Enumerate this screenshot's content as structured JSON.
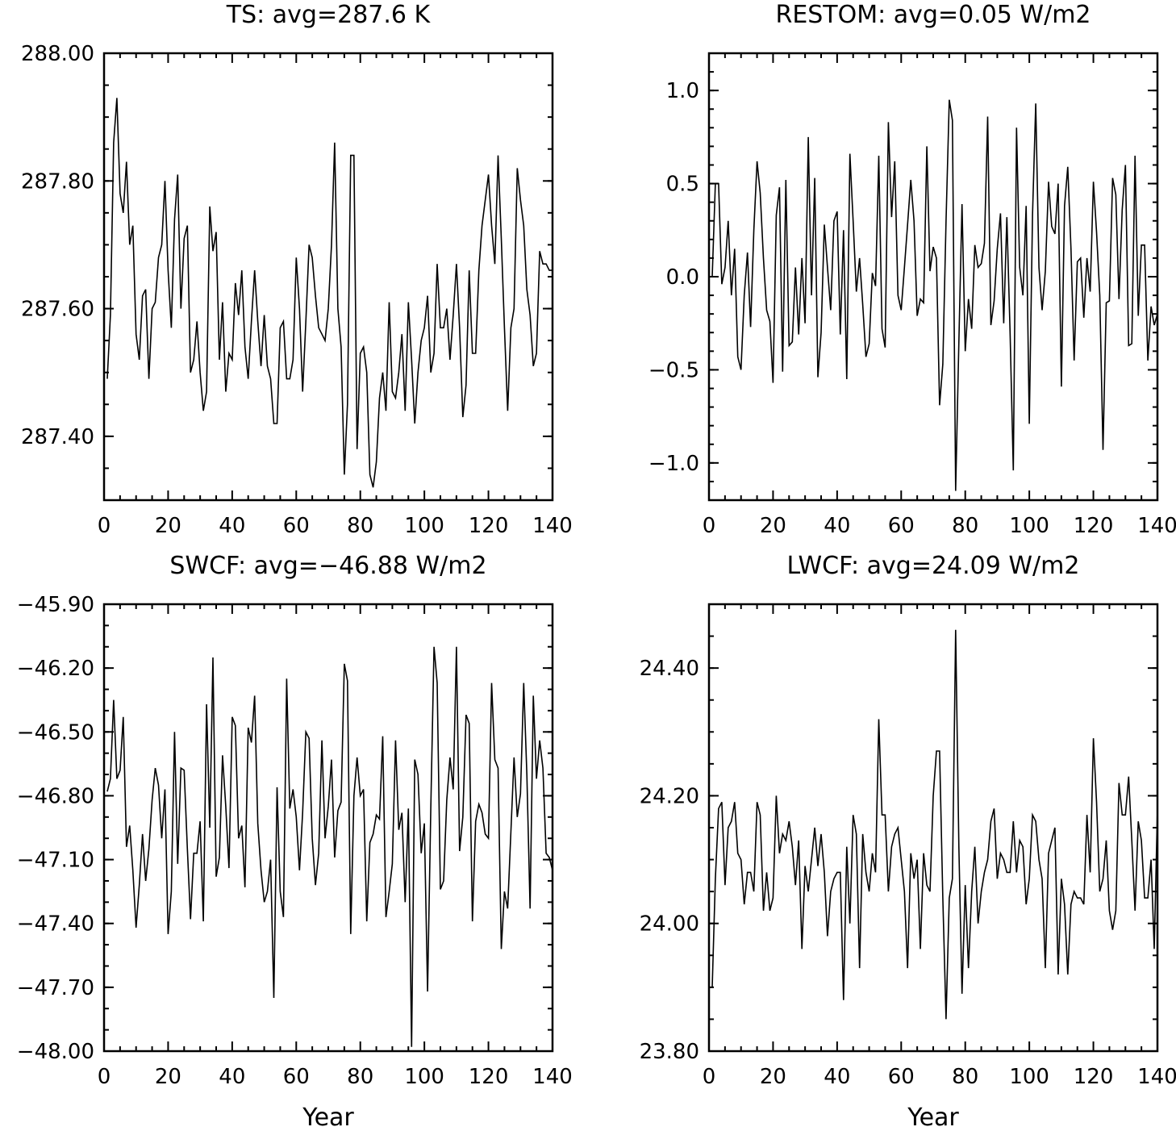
{
  "chart_data": [
    {
      "type": "line",
      "title": "TS: avg=287.6 K",
      "xlabel": "",
      "xlim": [
        0,
        140
      ],
      "ylim": [
        287.3,
        288.0
      ],
      "xticks": [
        0,
        20,
        40,
        60,
        80,
        100,
        120,
        140
      ],
      "xtick_labels": [
        "0",
        "20",
        "40",
        "60",
        "80",
        "100",
        "120",
        "140"
      ],
      "yticks": [
        287.4,
        287.6,
        287.8,
        288.0
      ],
      "ytick_labels": [
        "287.40",
        "287.60",
        "287.80",
        "288.00"
      ],
      "y_minor_step": 0.05,
      "grid": false,
      "x": [
        1,
        2,
        3,
        4,
        5,
        6,
        7,
        8,
        9,
        10,
        11,
        12,
        13,
        14,
        15,
        16,
        17,
        18,
        19,
        20,
        21,
        22,
        23,
        24,
        25,
        26,
        27,
        28,
        29,
        30,
        31,
        32,
        33,
        34,
        35,
        36,
        37,
        38,
        39,
        40,
        41,
        42,
        43,
        44,
        45,
        46,
        47,
        48,
        49,
        50,
        51,
        52,
        53,
        54,
        55,
        56,
        57,
        58,
        59,
        60,
        61,
        62,
        63,
        64,
        65,
        66,
        67,
        68,
        69,
        70,
        71,
        72,
        73,
        74,
        75,
        76,
        77,
        78,
        79,
        80,
        81,
        82,
        83,
        84,
        85,
        86,
        87,
        88,
        89,
        90,
        91,
        92,
        93,
        94,
        95,
        96,
        97,
        98,
        99,
        100,
        101,
        102,
        103,
        104,
        105,
        106,
        107,
        108,
        109,
        110,
        111,
        112,
        113,
        114,
        115,
        116,
        117,
        118,
        119,
        120,
        121,
        122,
        123,
        124,
        125,
        126,
        127,
        128,
        129,
        130,
        131,
        132,
        133,
        134,
        135,
        136,
        137,
        138,
        139,
        140
      ],
      "values": [
        287.49,
        287.59,
        287.86,
        287.93,
        287.78,
        287.75,
        287.83,
        287.7,
        287.73,
        287.56,
        287.52,
        287.62,
        287.63,
        287.49,
        287.6,
        287.61,
        287.68,
        287.7,
        287.8,
        287.66,
        287.57,
        287.74,
        287.81,
        287.6,
        287.71,
        287.73,
        287.5,
        287.52,
        287.58,
        287.5,
        287.44,
        287.47,
        287.76,
        287.69,
        287.72,
        287.52,
        287.61,
        287.47,
        287.53,
        287.52,
        287.64,
        287.59,
        287.66,
        287.54,
        287.49,
        287.58,
        287.66,
        287.58,
        287.51,
        287.59,
        287.51,
        287.49,
        287.42,
        287.42,
        287.57,
        287.58,
        287.49,
        287.49,
        287.52,
        287.68,
        287.6,
        287.47,
        287.58,
        287.7,
        287.68,
        287.62,
        287.57,
        287.56,
        287.55,
        287.6,
        287.7,
        287.86,
        287.6,
        287.54,
        287.34,
        287.45,
        287.84,
        287.84,
        287.38,
        287.53,
        287.54,
        287.5,
        287.34,
        287.32,
        287.36,
        287.46,
        287.5,
        287.44,
        287.61,
        287.47,
        287.46,
        287.5,
        287.56,
        287.44,
        287.61,
        287.52,
        287.42,
        287.5,
        287.55,
        287.57,
        287.62,
        287.5,
        287.53,
        287.67,
        287.57,
        287.57,
        287.6,
        287.52,
        287.59,
        287.67,
        287.57,
        287.43,
        287.48,
        287.66,
        287.53,
        287.53,
        287.66,
        287.73,
        287.77,
        287.81,
        287.73,
        287.67,
        287.84,
        287.71,
        287.57,
        287.44,
        287.57,
        287.6,
        287.82,
        287.77,
        287.73,
        287.63,
        287.59,
        287.51,
        287.53,
        287.69,
        287.67,
        287.67,
        287.66,
        287.66
      ]
    },
    {
      "type": "line",
      "title": "RESTOM: avg=0.05 W/m2",
      "xlabel": "",
      "xlim": [
        0,
        140
      ],
      "ylim": [
        -1.2,
        1.2
      ],
      "xticks": [
        0,
        20,
        40,
        60,
        80,
        100,
        120,
        140
      ],
      "xtick_labels": [
        "0",
        "20",
        "40",
        "60",
        "80",
        "100",
        "120",
        "140"
      ],
      "yticks": [
        -1.0,
        -0.5,
        0.0,
        0.5,
        1.0
      ],
      "ytick_labels": [
        "−1.0",
        "−0.5",
        "0.0",
        "0.5",
        "1.0"
      ],
      "y_minor_step": 0.1,
      "grid": false,
      "x": [
        1,
        2,
        3,
        4,
        5,
        6,
        7,
        8,
        9,
        10,
        11,
        12,
        13,
        14,
        15,
        16,
        17,
        18,
        19,
        20,
        21,
        22,
        23,
        24,
        25,
        26,
        27,
        28,
        29,
        30,
        31,
        32,
        33,
        34,
        35,
        36,
        37,
        38,
        39,
        40,
        41,
        42,
        43,
        44,
        45,
        46,
        47,
        48,
        49,
        50,
        51,
        52,
        53,
        54,
        55,
        56,
        57,
        58,
        59,
        60,
        61,
        62,
        63,
        64,
        65,
        66,
        67,
        68,
        69,
        70,
        71,
        72,
        73,
        74,
        75,
        76,
        77,
        78,
        79,
        80,
        81,
        82,
        83,
        84,
        85,
        86,
        87,
        88,
        89,
        90,
        91,
        92,
        93,
        94,
        95,
        96,
        97,
        98,
        99,
        100,
        101,
        102,
        103,
        104,
        105,
        106,
        107,
        108,
        109,
        110,
        111,
        112,
        113,
        114,
        115,
        116,
        117,
        118,
        119,
        120,
        121,
        122,
        123,
        124,
        125,
        126,
        127,
        128,
        129,
        130,
        131,
        132,
        133,
        134,
        135,
        136,
        137,
        138,
        139,
        140
      ],
      "values": [
        0.0,
        0.5,
        0.5,
        -0.04,
        0.05,
        0.3,
        -0.1,
        0.15,
        -0.43,
        -0.5,
        -0.1,
        0.13,
        -0.27,
        0.25,
        0.62,
        0.45,
        0.1,
        -0.18,
        -0.24,
        -0.57,
        0.33,
        0.48,
        -0.51,
        0.52,
        -0.37,
        -0.35,
        0.05,
        -0.31,
        0.1,
        -0.25,
        0.75,
        -0.1,
        0.53,
        -0.54,
        -0.3,
        0.28,
        0.05,
        -0.18,
        0.3,
        0.35,
        -0.31,
        0.25,
        -0.55,
        0.66,
        0.3,
        -0.08,
        0.1,
        -0.15,
        -0.43,
        -0.36,
        0.02,
        -0.05,
        0.65,
        -0.28,
        -0.38,
        0.83,
        0.32,
        0.62,
        -0.1,
        -0.18,
        0.05,
        0.28,
        0.52,
        0.3,
        -0.21,
        -0.12,
        -0.14,
        0.7,
        0.03,
        0.16,
        0.1,
        -0.69,
        -0.47,
        0.3,
        0.95,
        0.84,
        -1.15,
        -0.35,
        0.39,
        -0.4,
        -0.12,
        -0.28,
        0.17,
        0.05,
        0.07,
        0.18,
        0.86,
        -0.26,
        -0.13,
        0.15,
        0.34,
        -0.25,
        0.32,
        -0.3,
        -1.04,
        0.8,
        0.05,
        -0.1,
        0.38,
        -0.79,
        0.33,
        0.93,
        0.05,
        -0.18,
        0.03,
        0.51,
        0.27,
        0.23,
        0.5,
        -0.59,
        0.38,
        0.59,
        0.15,
        -0.45,
        0.08,
        0.1,
        -0.22,
        0.1,
        -0.08,
        0.51,
        0.24,
        -0.1,
        -0.93,
        -0.14,
        -0.13,
        0.53,
        0.44,
        -0.12,
        0.36,
        0.6,
        -0.37,
        -0.36,
        0.65,
        -0.21,
        0.17,
        0.17,
        -0.45,
        -0.16,
        -0.26,
        -0.2
      ]
    },
    {
      "type": "line",
      "title": "SWCF: avg=−46.88 W/m2",
      "xlabel": "Year",
      "xlim": [
        0,
        140
      ],
      "ylim": [
        -48.0,
        -45.9
      ],
      "xticks": [
        0,
        20,
        40,
        60,
        80,
        100,
        120,
        140
      ],
      "xtick_labels": [
        "0",
        "20",
        "40",
        "60",
        "80",
        "100",
        "120",
        "140"
      ],
      "yticks": [
        -48.0,
        -47.7,
        -47.4,
        -47.1,
        -46.8,
        -46.5,
        -46.2,
        -45.9
      ],
      "ytick_labels": [
        "−48.00",
        "−47.70",
        "−47.40",
        "−47.10",
        "−46.80",
        "−46.50",
        "−46.20",
        "−45.90"
      ],
      "y_minor_step": 0.1,
      "grid": false,
      "x": [
        1,
        2,
        3,
        4,
        5,
        6,
        7,
        8,
        9,
        10,
        11,
        12,
        13,
        14,
        15,
        16,
        17,
        18,
        19,
        20,
        21,
        22,
        23,
        24,
        25,
        26,
        27,
        28,
        29,
        30,
        31,
        32,
        33,
        34,
        35,
        36,
        37,
        38,
        39,
        40,
        41,
        42,
        43,
        44,
        45,
        46,
        47,
        48,
        49,
        50,
        51,
        52,
        53,
        54,
        55,
        56,
        57,
        58,
        59,
        60,
        61,
        62,
        63,
        64,
        65,
        66,
        67,
        68,
        69,
        70,
        71,
        72,
        73,
        74,
        75,
        76,
        77,
        78,
        79,
        80,
        81,
        82,
        83,
        84,
        85,
        86,
        87,
        88,
        89,
        90,
        91,
        92,
        93,
        94,
        95,
        96,
        97,
        98,
        99,
        100,
        101,
        102,
        103,
        104,
        105,
        106,
        107,
        108,
        109,
        110,
        111,
        112,
        113,
        114,
        115,
        116,
        117,
        118,
        119,
        120,
        121,
        122,
        123,
        124,
        125,
        126,
        127,
        128,
        129,
        130,
        131,
        132,
        133,
        134,
        135,
        136,
        137,
        138,
        139,
        140
      ],
      "values": [
        -46.78,
        -46.72,
        -46.35,
        -46.72,
        -46.68,
        -46.43,
        -47.04,
        -46.94,
        -47.15,
        -47.42,
        -47.22,
        -46.98,
        -47.2,
        -47.05,
        -46.82,
        -46.67,
        -46.75,
        -47.0,
        -46.77,
        -47.45,
        -47.25,
        -46.5,
        -47.12,
        -46.67,
        -46.68,
        -47.05,
        -47.38,
        -47.07,
        -47.07,
        -46.92,
        -47.39,
        -46.37,
        -46.95,
        -46.15,
        -47.18,
        -47.09,
        -46.61,
        -46.85,
        -47.14,
        -46.43,
        -46.47,
        -47.0,
        -46.94,
        -47.23,
        -46.48,
        -46.55,
        -46.33,
        -46.93,
        -47.15,
        -47.3,
        -47.25,
        -47.1,
        -47.75,
        -46.76,
        -47.25,
        -47.37,
        -46.25,
        -46.86,
        -46.77,
        -46.9,
        -47.15,
        -46.88,
        -46.5,
        -46.53,
        -47.0,
        -47.22,
        -47.07,
        -46.54,
        -47.0,
        -46.85,
        -46.63,
        -47.09,
        -46.87,
        -46.83,
        -46.18,
        -46.26,
        -47.45,
        -46.8,
        -46.62,
        -46.8,
        -46.77,
        -47.39,
        -47.02,
        -46.98,
        -46.89,
        -46.91,
        -46.52,
        -47.37,
        -47.25,
        -47.12,
        -46.54,
        -46.96,
        -46.88,
        -47.3,
        -46.86,
        -47.98,
        -46.63,
        -46.7,
        -47.07,
        -46.93,
        -47.72,
        -46.86,
        -46.1,
        -46.27,
        -47.24,
        -47.2,
        -46.82,
        -46.62,
        -46.77,
        -46.1,
        -47.06,
        -46.9,
        -46.42,
        -46.46,
        -47.39,
        -46.92,
        -46.84,
        -46.88,
        -46.98,
        -47.0,
        -46.27,
        -46.63,
        -46.67,
        -47.52,
        -47.25,
        -47.33,
        -46.97,
        -46.62,
        -46.9,
        -46.79,
        -46.27,
        -46.7,
        -47.33,
        -46.33,
        -46.72,
        -46.54,
        -46.67,
        -47.07,
        -47.09,
        -47.15
      ]
    },
    {
      "type": "line",
      "title": "LWCF: avg=24.09 W/m2",
      "xlabel": "Year",
      "xlim": [
        0,
        140
      ],
      "ylim": [
        23.8,
        24.5
      ],
      "xticks": [
        0,
        20,
        40,
        60,
        80,
        100,
        120,
        140
      ],
      "xtick_labels": [
        "0",
        "20",
        "40",
        "60",
        "80",
        "100",
        "120",
        "140"
      ],
      "yticks": [
        23.8,
        24.0,
        24.2,
        24.4
      ],
      "ytick_labels": [
        "23.80",
        "24.00",
        "24.20",
        "24.40"
      ],
      "y_minor_step": 0.05,
      "grid": false,
      "x": [
        1,
        2,
        3,
        4,
        5,
        6,
        7,
        8,
        9,
        10,
        11,
        12,
        13,
        14,
        15,
        16,
        17,
        18,
        19,
        20,
        21,
        22,
        23,
        24,
        25,
        26,
        27,
        28,
        29,
        30,
        31,
        32,
        33,
        34,
        35,
        36,
        37,
        38,
        39,
        40,
        41,
        42,
        43,
        44,
        45,
        46,
        47,
        48,
        49,
        50,
        51,
        52,
        53,
        54,
        55,
        56,
        57,
        58,
        59,
        60,
        61,
        62,
        63,
        64,
        65,
        66,
        67,
        68,
        69,
        70,
        71,
        72,
        73,
        74,
        75,
        76,
        77,
        78,
        79,
        80,
        81,
        82,
        83,
        84,
        85,
        86,
        87,
        88,
        89,
        90,
        91,
        92,
        93,
        94,
        95,
        96,
        97,
        98,
        99,
        100,
        101,
        102,
        103,
        104,
        105,
        106,
        107,
        108,
        109,
        110,
        111,
        112,
        113,
        114,
        115,
        116,
        117,
        118,
        119,
        120,
        121,
        122,
        123,
        124,
        125,
        126,
        127,
        128,
        129,
        130,
        131,
        132,
        133,
        134,
        135,
        136,
        137,
        138,
        139,
        140
      ],
      "values": [
        23.9,
        24.07,
        24.18,
        24.19,
        24.06,
        24.15,
        24.16,
        24.19,
        24.11,
        24.1,
        24.03,
        24.08,
        24.08,
        24.05,
        24.19,
        24.17,
        24.02,
        24.08,
        24.02,
        24.04,
        24.2,
        24.11,
        24.14,
        24.13,
        24.16,
        24.12,
        24.06,
        24.13,
        23.96,
        24.09,
        24.05,
        24.1,
        24.15,
        24.09,
        24.14,
        24.08,
        23.98,
        24.05,
        24.07,
        24.08,
        24.08,
        23.88,
        24.12,
        24.0,
        24.17,
        24.14,
        23.93,
        24.14,
        24.08,
        24.05,
        24.11,
        24.08,
        24.32,
        24.17,
        24.17,
        24.05,
        24.12,
        24.14,
        24.15,
        24.1,
        24.05,
        23.93,
        24.11,
        24.07,
        24.1,
        23.96,
        24.11,
        24.06,
        24.05,
        24.2,
        24.27,
        24.27,
        24.04,
        23.85,
        24.04,
        24.07,
        24.46,
        24.12,
        23.89,
        24.06,
        23.93,
        24.05,
        24.12,
        24.0,
        24.05,
        24.08,
        24.1,
        24.16,
        24.18,
        24.07,
        24.11,
        24.1,
        24.08,
        24.08,
        24.16,
        24.08,
        24.13,
        24.12,
        24.03,
        24.07,
        24.17,
        24.16,
        24.1,
        24.07,
        23.93,
        24.11,
        24.13,
        24.15,
        23.92,
        24.07,
        24.03,
        23.92,
        24.03,
        24.05,
        24.04,
        24.04,
        24.03,
        24.17,
        24.08,
        24.29,
        24.19,
        24.05,
        24.07,
        24.13,
        24.02,
        23.99,
        24.02,
        24.22,
        24.17,
        24.17,
        24.23,
        24.13,
        24.02,
        24.16,
        24.13,
        24.04,
        24.04,
        24.1,
        23.96,
        24.18
      ]
    }
  ]
}
